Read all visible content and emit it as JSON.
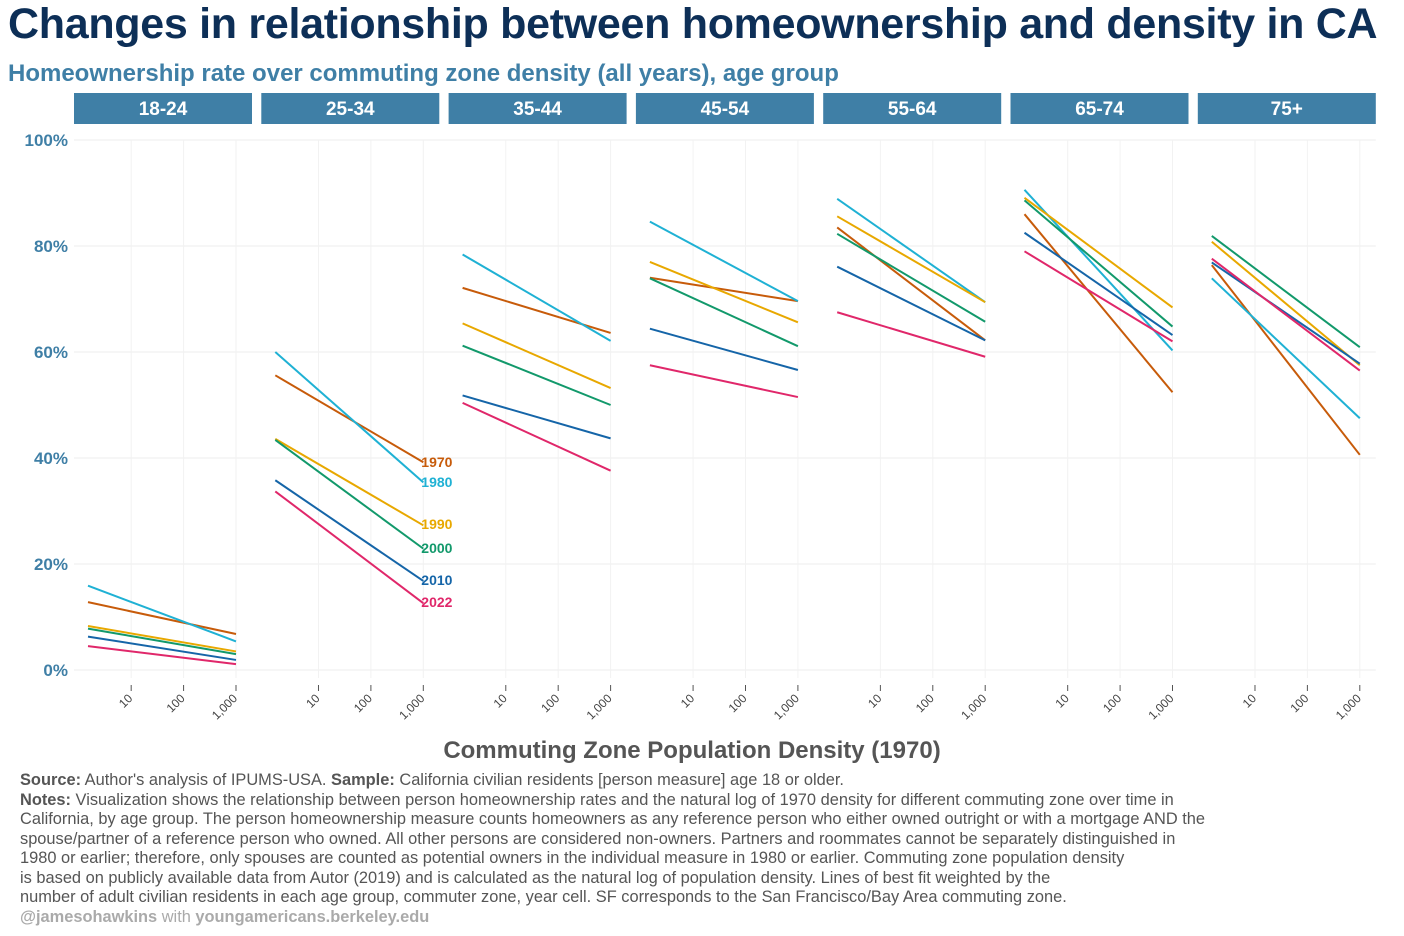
{
  "title": "Changes in relationship between homeownership and density in CA",
  "subtitle": "Homeownership rate over commuting zone density (all years), age group",
  "chart_data": {
    "type": "line",
    "facets": [
      "18-24",
      "25-34",
      "35-44",
      "45-54",
      "55-64",
      "65-74",
      "75+"
    ],
    "xlabel": "Commuting Zone Population Density (1970)",
    "x_scale": "log",
    "x_ticks": [
      10,
      100,
      1000
    ],
    "x_tick_labels": [
      "10",
      "100",
      "1,000"
    ],
    "x_range": [
      1.5,
      1000
    ],
    "y_ticks": [
      0,
      20,
      40,
      60,
      80,
      100
    ],
    "y_tick_labels": [
      "0%",
      "20%",
      "40%",
      "60%",
      "80%",
      "100%"
    ],
    "ylim": [
      0,
      100
    ],
    "grid": true,
    "series_labels": [
      "1970",
      "1980",
      "1990",
      "2000",
      "2010",
      "2022"
    ],
    "colors": {
      "1970": "#c75b0a",
      "1980": "#1fb1d4",
      "1990": "#e8a800",
      "2000": "#12996b",
      "2010": "#1565a8",
      "2022": "#e0276a",
      "facet_header": "#3f7fa6",
      "title": "#0d2f57",
      "axis_text": "#3f7fa6"
    },
    "series": [
      {
        "name": "1970",
        "x": [
          1.5,
          1000
        ],
        "values": {
          "18-24": [
            12.8,
            6.8
          ],
          "25-34": [
            55.6,
            39.2
          ],
          "35-44": [
            72.1,
            63.6
          ],
          "45-54": [
            74.0,
            69.6
          ],
          "55-64": [
            83.5,
            62.2
          ],
          "65-74": [
            86.0,
            52.4
          ],
          "75+": [
            76.4,
            40.6
          ]
        }
      },
      {
        "name": "1980",
        "x": [
          1.5,
          1000
        ],
        "values": {
          "18-24": [
            15.9,
            5.4
          ],
          "25-34": [
            60.0,
            35.4
          ],
          "35-44": [
            78.4,
            62.1
          ],
          "45-54": [
            84.6,
            69.6
          ],
          "55-64": [
            88.9,
            69.4
          ],
          "65-74": [
            90.6,
            60.3
          ],
          "75+": [
            73.9,
            47.5
          ]
        }
      },
      {
        "name": "1990",
        "x": [
          1.5,
          1000
        ],
        "values": {
          "18-24": [
            8.3,
            3.5
          ],
          "25-34": [
            43.6,
            27.3
          ],
          "35-44": [
            65.4,
            53.2
          ],
          "45-54": [
            77.0,
            65.6
          ],
          "55-64": [
            85.6,
            69.4
          ],
          "65-74": [
            89.1,
            68.4
          ],
          "75+": [
            80.8,
            57.5
          ]
        }
      },
      {
        "name": "2000",
        "x": [
          1.5,
          1000
        ],
        "values": {
          "18-24": [
            7.8,
            3.0
          ],
          "25-34": [
            43.4,
            22.9
          ],
          "35-44": [
            61.2,
            50.0
          ],
          "45-54": [
            73.9,
            61.1
          ],
          "55-64": [
            82.3,
            65.7
          ],
          "65-74": [
            88.6,
            64.8
          ],
          "75+": [
            81.9,
            60.9
          ]
        }
      },
      {
        "name": "2010",
        "x": [
          1.5,
          1000
        ],
        "values": {
          "18-24": [
            6.3,
            1.9
          ],
          "25-34": [
            35.8,
            16.8
          ],
          "35-44": [
            51.8,
            43.7
          ],
          "45-54": [
            64.4,
            56.6
          ],
          "55-64": [
            76.1,
            62.2
          ],
          "65-74": [
            82.5,
            63.2
          ],
          "75+": [
            76.9,
            57.8
          ]
        }
      },
      {
        "name": "2022",
        "x": [
          1.5,
          1000
        ],
        "values": {
          "18-24": [
            4.5,
            1.1
          ],
          "25-34": [
            33.7,
            12.6
          ],
          "35-44": [
            50.4,
            37.6
          ],
          "45-54": [
            57.5,
            51.5
          ],
          "55-64": [
            67.5,
            59.1
          ],
          "65-74": [
            79.0,
            62.0
          ],
          "75+": [
            77.6,
            56.5
          ]
        }
      }
    ],
    "labelled_facet": "25-34"
  },
  "footer": {
    "source_label": "Source:",
    "source_text": " Author's analysis of IPUMS-USA. ",
    "sample_label": "Sample:",
    "sample_text": " California civilian residents [person measure] age 18 or older.",
    "notes_label": "Notes:",
    "notes_lines": [
      " Visualization shows the relationship between person homeownership rates and the natural log of 1970 density for different commuting zone over time in",
      "California, by age group. The person homeownership measure counts homeowners as any reference person who either owned outright or with a mortgage AND the",
      "spouse/partner of a reference person who owned. All other persons are considered non-owners. Partners and roommates cannot be separately distinguished in",
      "1980 or earlier; therefore, only spouses are counted as potential owners in the individual measure in 1980 or earlier. Commuting zone population density",
      "is based on publicly available data from Autor (2019) and is calculated as the natural log of population density. Lines of best fit weighted by the",
      "number of adult civilian residents in each age group, commuter zone, year cell. SF corresponds to the San Francisco/Bay Area commuting zone."
    ],
    "credit_handle": "@jamesohawkins",
    "credit_with": " with ",
    "credit_site": "youngamericans.berkeley.edu"
  }
}
